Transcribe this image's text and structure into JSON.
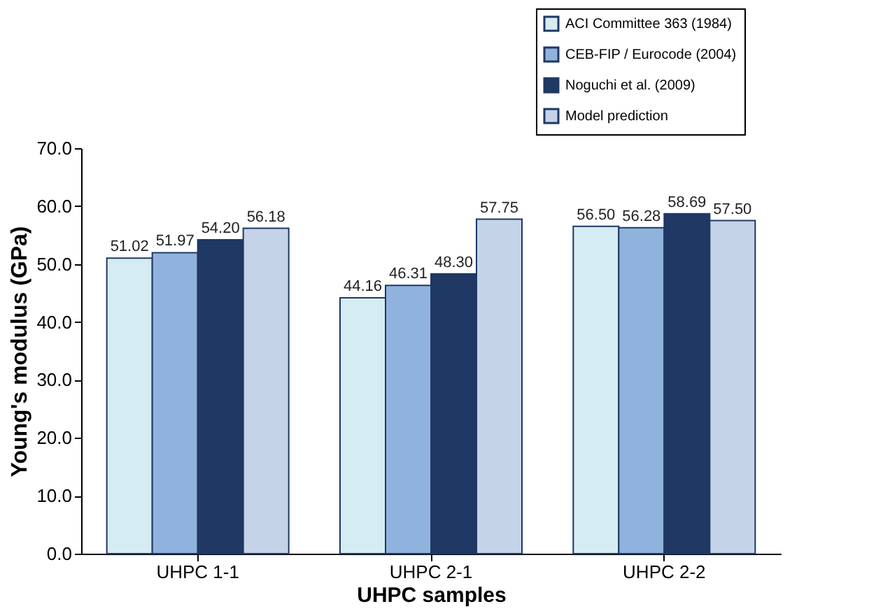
{
  "chart_data": {
    "type": "bar",
    "xlabel": "UHPC samples",
    "ylabel": "Young's modulus (GPa)",
    "categories": [
      "UHPC 1-1",
      "UHPC 2-1",
      "UHPC 2-2"
    ],
    "series": [
      {
        "name": "ACI Committee 363 (1984)",
        "color": "#d6ecf3",
        "values": [
          51.02,
          44.16,
          56.5
        ],
        "value_labels": [
          "51.02",
          "44.16",
          "56.50"
        ]
      },
      {
        "name": "CEB-FIP / Eurocode (2004)",
        "color": "#8fb3dd",
        "values": [
          51.97,
          46.31,
          56.28
        ],
        "value_labels": [
          "51.97",
          "46.31",
          "56.28"
        ]
      },
      {
        "name": "Noguchi et al. (2009)",
        "color": "#1f3864",
        "values": [
          54.2,
          48.3,
          58.69
        ],
        "value_labels": [
          "54.20",
          "48.30",
          "58.69"
        ]
      },
      {
        "name": "Model prediction",
        "color": "#c5d3e8",
        "values": [
          56.18,
          57.75,
          57.5
        ],
        "value_labels": [
          "56.18",
          "57.75",
          "57.50"
        ]
      }
    ],
    "ylim": [
      0,
      70
    ],
    "yticks": [
      {
        "value": 0,
        "label": "0.0"
      },
      {
        "value": 10,
        "label": "10.0"
      },
      {
        "value": 20,
        "label": "20.0"
      },
      {
        "value": 30,
        "label": "30.0"
      },
      {
        "value": 40,
        "label": "40.0"
      },
      {
        "value": 50,
        "label": "50.0"
      },
      {
        "value": 60,
        "label": "60.0"
      },
      {
        "value": 70,
        "label": "70.0"
      }
    ],
    "grid": false,
    "legend": "top right"
  }
}
